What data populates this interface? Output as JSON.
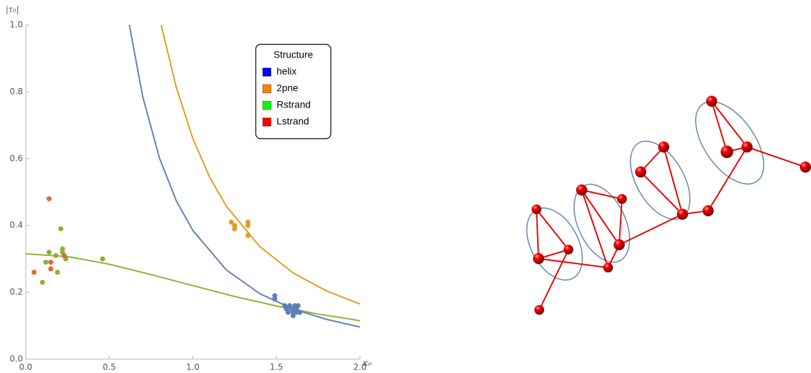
{
  "chart_data": {
    "type": "scatter",
    "x_label": "κ₀",
    "y_label": "|τ₀|",
    "xlim": [
      0,
      2
    ],
    "ylim": [
      0,
      1
    ],
    "xticks": [
      {
        "value": 0,
        "label": "0.0"
      },
      0.5,
      {
        "value": 1,
        "label": "1.0"
      },
      1.5,
      {
        "value": 2,
        "label": "2.0"
      }
    ],
    "yticks": [
      {
        "value": 0,
        "label": "0.0"
      },
      0.2,
      0.4,
      0.6,
      0.8,
      {
        "value": 1,
        "label": "1.0"
      }
    ],
    "legend_title": "Structure",
    "legend_position": "top-right",
    "series": [
      {
        "name": "helix",
        "color": "#5e81b5",
        "legend_color": "#0000ff",
        "x": [
          1.49,
          1.49,
          1.55,
          1.56,
          1.57,
          1.58,
          1.59,
          1.6,
          1.6,
          1.61,
          1.62,
          1.63,
          1.64,
          1.62,
          1.61
        ],
        "values": [
          0.19,
          0.18,
          0.16,
          0.15,
          0.14,
          0.16,
          0.15,
          0.13,
          0.14,
          0.16,
          0.15,
          0.16,
          0.14,
          0.14,
          0.15
        ]
      },
      {
        "name": "2pne",
        "color": "#e19c24",
        "legend_color": "#ff8000",
        "x": [
          1.23,
          1.25,
          1.25,
          1.33,
          1.33,
          1.33
        ],
        "values": [
          0.41,
          0.39,
          0.4,
          0.41,
          0.4,
          0.37
        ]
      },
      {
        "name": "Rstrand",
        "color": "#8fb032",
        "legend_color": "#00ff00",
        "x": [
          0.1,
          0.12,
          0.14,
          0.18,
          0.19,
          0.21,
          0.22,
          0.22,
          0.24,
          0.46
        ],
        "values": [
          0.23,
          0.29,
          0.32,
          0.31,
          0.26,
          0.39,
          0.33,
          0.32,
          0.3,
          0.3
        ]
      },
      {
        "name": "Lstrand",
        "color": "#eb6235",
        "legend_color": "#ff0000",
        "x": [
          0.05,
          0.14,
          0.15,
          0.15,
          0.23
        ],
        "values": [
          0.26,
          0.48,
          0.27,
          0.29,
          0.31
        ]
      }
    ],
    "curves": [
      {
        "color": "#5e81b5",
        "x": [
          0.62,
          0.7,
          0.8,
          0.9,
          1.0,
          1.2,
          1.4,
          1.6,
          1.8,
          2.0
        ],
        "values": [
          1.0,
          0.786,
          0.602,
          0.475,
          0.385,
          0.267,
          0.196,
          0.15,
          0.119,
          0.096
        ]
      },
      {
        "color": "#e19c24",
        "x": [
          0.81,
          0.9,
          1.0,
          1.1,
          1.2,
          1.4,
          1.6,
          1.8,
          2.0
        ],
        "values": [
          1.0,
          0.815,
          0.66,
          0.545,
          0.458,
          0.337,
          0.258,
          0.204,
          0.165
        ]
      },
      {
        "color": "#8fb032",
        "x": [
          0,
          0.25,
          0.5,
          0.75,
          1.0,
          1.25,
          1.5,
          1.75,
          2.0
        ],
        "values": [
          0.315,
          0.307,
          0.284,
          0.253,
          0.22,
          0.1875,
          0.159,
          0.135,
          0.115
        ]
      }
    ]
  }
}
